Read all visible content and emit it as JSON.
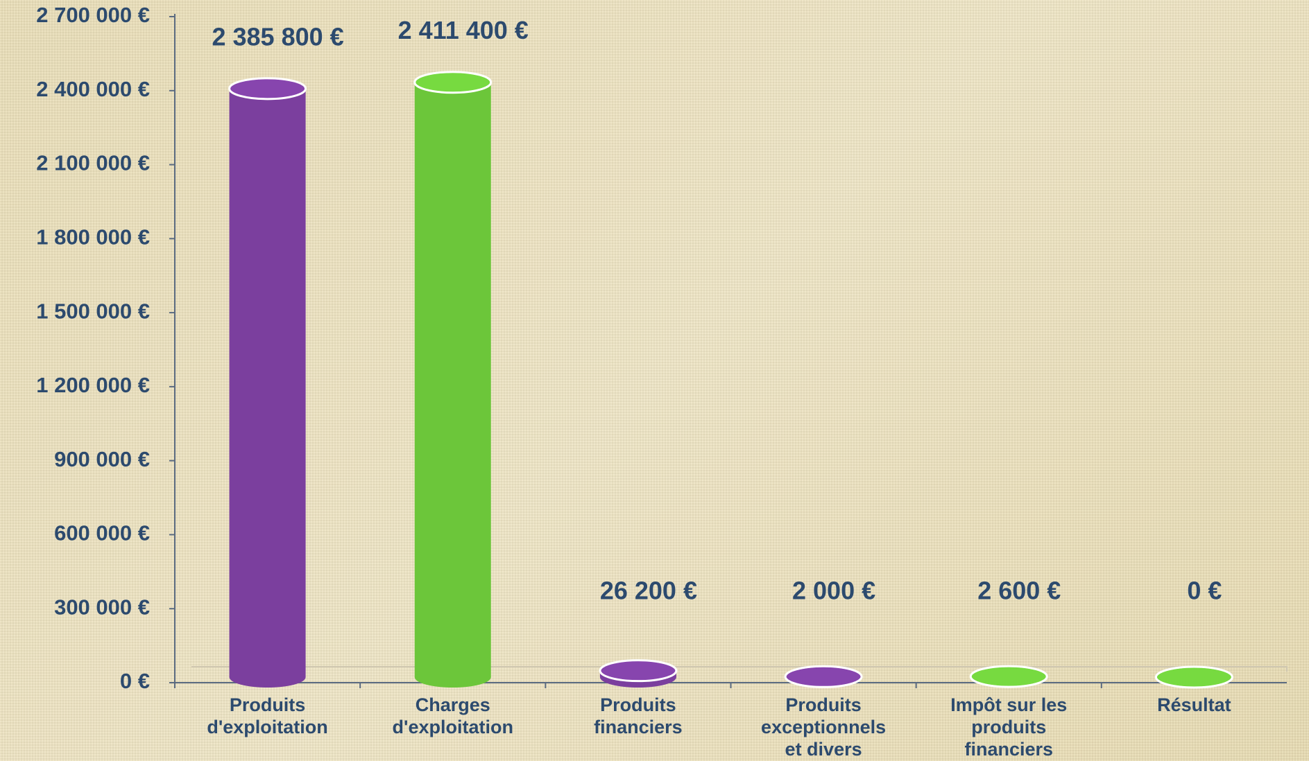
{
  "chart_data": {
    "type": "bar",
    "categories": [
      "Produits d'exploitation",
      "Charges d'exploitation",
      "Produits financiers",
      "Produits exceptionnels et divers",
      "Impôt sur les produits financiers",
      "Résultat"
    ],
    "values": [
      2385800,
      2411400,
      26200,
      2000,
      2600,
      0
    ],
    "value_labels": [
      "2 385 800 €",
      "2 411 400 €",
      "26 200 €",
      "2 000 €",
      "2 600 €",
      "0 €"
    ],
    "colors": [
      "#7b3f9e",
      "#6cc63a",
      "#7b3f9e",
      "#7b3f9e",
      "#6cc63a",
      "#6cc63a"
    ],
    "ylim": [
      0,
      2700000
    ],
    "yticks": [
      {
        "value": 0,
        "label": "0 €"
      },
      {
        "value": 300000,
        "label": "300 000 €"
      },
      {
        "value": 600000,
        "label": "600 000 €"
      },
      {
        "value": 900000,
        "label": "900 000 €"
      },
      {
        "value": 1200000,
        "label": "1 200 000 €"
      },
      {
        "value": 1500000,
        "label": "1 500 000 €"
      },
      {
        "value": 1800000,
        "label": "1 800 000 €"
      },
      {
        "value": 2100000,
        "label": "2 100 000 €"
      },
      {
        "value": 2400000,
        "label": "2 400 000 €"
      },
      {
        "value": 2700000,
        "label": "2 700 000 €"
      }
    ]
  }
}
